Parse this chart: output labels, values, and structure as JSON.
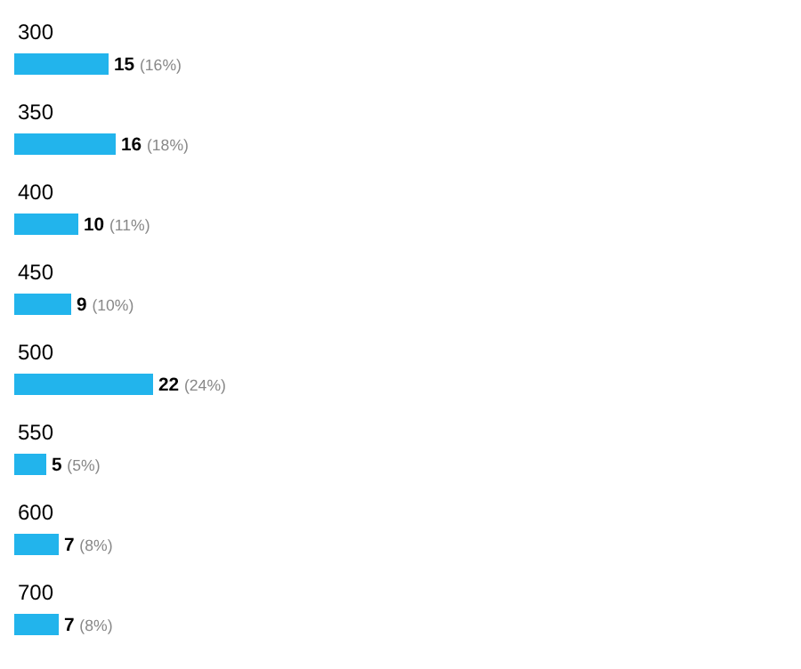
{
  "chart_data": {
    "type": "bar",
    "orientation": "horizontal",
    "categories": [
      "300",
      "350",
      "400",
      "450",
      "500",
      "550",
      "600",
      "700"
    ],
    "values": [
      15,
      16,
      10,
      9,
      22,
      5,
      7,
      7
    ],
    "value_labels": [
      "15 (16%)",
      "16 (18%)",
      "10 (11%)",
      "9 (10%)",
      "22 (24%)",
      "5 (5%)",
      "7 (8%)",
      "7 (8%)"
    ],
    "color": "#22b4ec"
  }
}
